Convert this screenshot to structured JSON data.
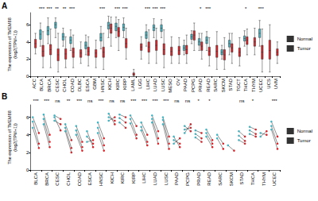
{
  "chart_data": [
    {
      "type": "boxplot",
      "title": "A",
      "ylabel": "The expression of TMEM88\n(log2(TPM+1))",
      "categories": [
        "ACC",
        "BLCA",
        "BRCA",
        "CESC",
        "CHOL",
        "COAD",
        "DLBC",
        "ESCA",
        "GBM",
        "HNSC",
        "KICH",
        "KIRC",
        "KIRP",
        "LAML",
        "LGG",
        "LIHC",
        "LUAD",
        "LUSC",
        "MESO",
        "OV",
        "PAAD",
        "PCPG",
        "PRAD",
        "READ",
        "SARC",
        "SKCM",
        "STAD",
        "TGCT",
        "THCA",
        "THYM",
        "UCEC",
        "UCS",
        "UVM"
      ],
      "series": [
        {
          "name": "Normal",
          "color": "#45b4c2",
          "values": [
            null,
            [
              3.5,
              4.3,
              4.9,
              5.4,
              6.2
            ],
            [
              3.8,
              4.8,
              5.3,
              5.8,
              6.8
            ],
            [
              4.5,
              5.6,
              6.0,
              6.3,
              6.8
            ],
            [
              3.5,
              4.2,
              4.6,
              5.0,
              5.6
            ],
            [
              3.0,
              3.8,
              4.2,
              4.6,
              5.4
            ],
            null,
            [
              2.5,
              3.2,
              3.6,
              4.0,
              4.8
            ],
            null,
            [
              3.2,
              4.1,
              4.5,
              5.0,
              5.8
            ],
            [
              4.5,
              5.5,
              5.9,
              6.3,
              7.0
            ],
            [
              4.5,
              5.3,
              5.8,
              6.2,
              6.9
            ],
            [
              4.5,
              5.3,
              5.7,
              6.1,
              6.8
            ],
            null,
            null,
            [
              3.5,
              4.4,
              4.8,
              5.2,
              6.0
            ],
            [
              4.5,
              5.3,
              5.7,
              6.0,
              6.7
            ],
            [
              4.5,
              5.2,
              5.6,
              6.0,
              6.6
            ],
            null,
            null,
            [
              2.5,
              3.0,
              3.3,
              3.6,
              4.2
            ],
            [
              3.8,
              4.3,
              4.6,
              4.9,
              5.3
            ],
            [
              3.0,
              3.6,
              4.0,
              4.4,
              5.0
            ],
            [
              3.0,
              3.8,
              4.2,
              4.6,
              5.2
            ],
            null,
            [
              2.0,
              2.5,
              2.8,
              3.1,
              3.6
            ],
            [
              2.5,
              3.4,
              3.8,
              4.2,
              5.0
            ],
            null,
            [
              3.5,
              4.1,
              4.4,
              4.7,
              5.3
            ],
            null,
            [
              3.5,
              4.5,
              5.0,
              5.5,
              6.5
            ],
            null,
            null
          ]
        },
        {
          "name": "Tumor",
          "color": "#d7262b",
          "values": [
            [
              2.6,
              3.3,
              3.8,
              4.3,
              5.0
            ],
            [
              1.0,
              2.3,
              2.9,
              3.6,
              5.2
            ],
            [
              1.0,
              2.5,
              3.1,
              3.7,
              5.5
            ],
            [
              0.5,
              1.8,
              2.5,
              3.2,
              5.0
            ],
            [
              1.0,
              2.0,
              2.6,
              3.2,
              4.6
            ],
            [
              1.0,
              2.2,
              2.8,
              3.3,
              4.8
            ],
            [
              1.5,
              2.2,
              2.7,
              3.1,
              4.0
            ],
            [
              1.2,
              2.4,
              2.9,
              3.4,
              4.6
            ],
            [
              1.0,
              2.2,
              2.7,
              3.1,
              4.2
            ],
            [
              0.8,
              2.2,
              2.8,
              3.4,
              5.0
            ],
            [
              3.5,
              5.0,
              5.6,
              6.1,
              6.9
            ],
            [
              3.0,
              4.6,
              5.2,
              5.7,
              6.6
            ],
            [
              2.0,
              3.3,
              3.8,
              4.4,
              5.6
            ],
            [
              0.0,
              0.1,
              0.2,
              0.4,
              0.8
            ],
            [
              2.0,
              3.0,
              3.4,
              3.8,
              4.6
            ],
            [
              1.5,
              2.8,
              3.4,
              4.0,
              5.4
            ],
            [
              1.5,
              3.0,
              3.6,
              4.2,
              5.6
            ],
            [
              1.0,
              2.5,
              3.1,
              3.8,
              5.4
            ],
            [
              1.5,
              2.4,
              2.9,
              3.4,
              4.6
            ],
            [
              1.5,
              2.5,
              3.0,
              3.5,
              4.5
            ],
            [
              1.5,
              2.6,
              3.1,
              3.6,
              4.8
            ],
            [
              3.0,
              4.2,
              4.8,
              5.3,
              6.2
            ],
            [
              2.0,
              3.0,
              3.5,
              4.0,
              5.0
            ],
            [
              1.2,
              2.4,
              2.9,
              3.4,
              4.5
            ],
            [
              0.8,
              2.2,
              2.9,
              3.6,
              5.2
            ],
            [
              0.8,
              1.9,
              2.5,
              3.1,
              4.5
            ],
            [
              1.5,
              2.8,
              3.3,
              3.8,
              5.0
            ],
            [
              1.2,
              2.3,
              2.8,
              3.3,
              4.5
            ],
            [
              2.5,
              3.7,
              4.2,
              4.6,
              5.5
            ],
            [
              2.5,
              3.5,
              4.0,
              4.5,
              5.6
            ],
            [
              0.5,
              2.0,
              2.8,
              3.6,
              5.5
            ],
            [
              0.5,
              2.0,
              3.0,
              4.2,
              6.0
            ],
            [
              1.5,
              2.4,
              2.8,
              3.2,
              4.0
            ]
          ]
        }
      ],
      "significance": [
        null,
        "***",
        "***",
        "**",
        "**",
        "***",
        null,
        null,
        null,
        "***",
        null,
        "***",
        "***",
        null,
        null,
        "***",
        "***",
        "***",
        null,
        null,
        null,
        null,
        "*",
        "***",
        null,
        null,
        null,
        null,
        "*",
        null,
        "***",
        null,
        null
      ],
      "ylim": [
        0,
        7.4
      ],
      "yticks": [
        0,
        2,
        4,
        6
      ],
      "grid": false,
      "legend": "right"
    },
    {
      "type": "paired",
      "title": "B",
      "ylabel": "The expression of TMEM88\n(log2(TPM+1))",
      "categories": [
        "BLCA",
        "BRCA",
        "CESC",
        "CHOL",
        "COAD",
        "ESCA",
        "HNSC",
        "KICH",
        "KIRC",
        "KIRP",
        "LIHC",
        "LUAD",
        "LUSC",
        "PAAD",
        "PCPG",
        "PRAD",
        "READ",
        "SARC",
        "SKCM",
        "STAD",
        "THCA",
        "THYM",
        "UCEC"
      ],
      "series": [
        {
          "name": "Normal",
          "color": "#45b4c2"
        },
        {
          "name": "Tumor",
          "color": "#d7262b"
        }
      ],
      "pairs": [
        [
          [
            5.5,
            3.0
          ],
          [
            4.8,
            2.5
          ],
          [
            6.0,
            4.2
          ]
        ],
        [
          [
            5.8,
            3.2
          ],
          [
            5.2,
            2.6
          ],
          [
            6.3,
            4.0
          ]
        ],
        [
          [
            6.0,
            4.5
          ],
          [
            5.6,
            5.2
          ],
          [
            6.2,
            5.8
          ]
        ],
        [
          [
            4.8,
            2.5
          ],
          [
            4.4,
            2.0
          ],
          [
            5.2,
            3.4
          ]
        ],
        [
          [
            4.5,
            2.6
          ],
          [
            4.0,
            2.2
          ],
          [
            5.0,
            3.2
          ]
        ],
        [
          [
            3.8,
            3.0
          ],
          [
            3.2,
            3.4
          ],
          [
            4.4,
            2.6
          ]
        ],
        [
          [
            4.8,
            2.8
          ],
          [
            4.2,
            2.2
          ],
          [
            5.4,
            3.6
          ]
        ],
        [
          [
            6.0,
            5.6
          ],
          [
            5.6,
            6.0
          ],
          [
            6.4,
            5.2
          ]
        ],
        [
          [
            5.9,
            5.4
          ],
          [
            5.4,
            4.8
          ],
          [
            6.3,
            6.0
          ]
        ],
        [
          [
            5.8,
            4.0
          ],
          [
            5.3,
            3.6
          ],
          [
            6.2,
            5.0
          ]
        ],
        [
          [
            4.9,
            3.2
          ],
          [
            4.5,
            2.8
          ],
          [
            5.4,
            4.0
          ]
        ],
        [
          [
            5.8,
            3.6
          ],
          [
            5.4,
            3.0
          ],
          [
            6.2,
            4.4
          ]
        ],
        [
          [
            5.7,
            3.0
          ],
          [
            5.2,
            2.4
          ],
          [
            6.0,
            3.8
          ]
        ],
        [
          [
            3.4,
            3.0
          ],
          [
            3.0,
            3.6
          ],
          [
            3.8,
            2.6
          ]
        ],
        [
          [
            4.6,
            4.8
          ],
          [
            4.2,
            5.2
          ],
          [
            5.0,
            4.4
          ]
        ],
        [
          [
            4.1,
            3.6
          ],
          [
            3.7,
            3.2
          ],
          [
            4.5,
            4.2
          ]
        ],
        [
          [
            4.2,
            3.0
          ],
          [
            3.8,
            2.6
          ],
          [
            4.6,
            3.4
          ]
        ],
        [
          [
            4.0,
            3.0
          ],
          [
            3.6,
            2.4
          ]
        ],
        [
          [
            2.8,
            2.2
          ]
        ],
        [
          [
            3.9,
            3.3
          ],
          [
            3.4,
            3.0
          ],
          [
            4.4,
            3.8
          ]
        ],
        [
          [
            4.5,
            4.1
          ],
          [
            4.1,
            3.8
          ],
          [
            4.9,
            4.6
          ]
        ],
        [
          [
            4.2,
            4.0
          ],
          [
            3.8,
            4.4
          ]
        ],
        [
          [
            5.0,
            3.0
          ],
          [
            4.6,
            2.4
          ],
          [
            5.5,
            3.8
          ]
        ]
      ],
      "significance": [
        "***",
        "***",
        "ns",
        "**",
        "***",
        "ns",
        "***",
        "ns",
        "ns",
        "***",
        "***",
        "***",
        "***",
        "ns",
        "ns",
        "*",
        "*",
        null,
        null,
        "ns",
        "*",
        null,
        "***"
      ],
      "ylim": [
        0,
        7.4
      ],
      "yticks": [
        0,
        2,
        4,
        6
      ],
      "grid": false,
      "legend": "right"
    }
  ]
}
